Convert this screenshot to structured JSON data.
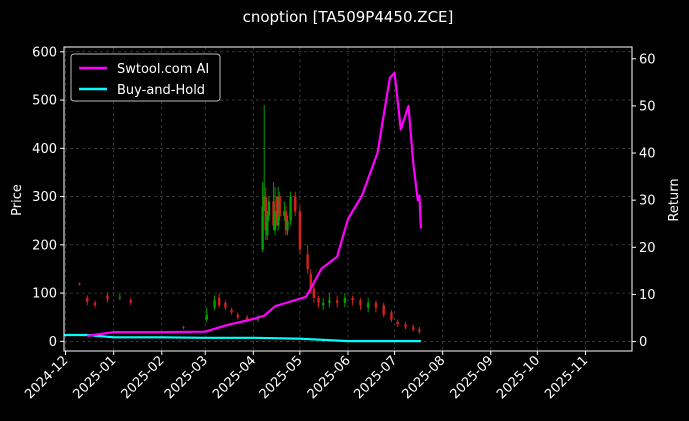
{
  "chart_data": {
    "type": "line",
    "title": "cnoption [TA509P4450.ZCE]",
    "ylabel": "Price",
    "ylabel_right": "Return",
    "grid": true,
    "legend_position": "top-left",
    "ylim": [
      -20,
      610
    ],
    "ylim_right": [
      -2,
      62.5
    ],
    "xlim": [
      "2024-11-30",
      "2025-12-01"
    ],
    "x_ticks": [
      "2024-12",
      "2025-01",
      "2025-02",
      "2025-03",
      "2025-04",
      "2025-05",
      "2025-06",
      "2025-07",
      "2025-08",
      "2025-09",
      "2025-10",
      "2025-11"
    ],
    "y_ticks": [
      0,
      100,
      200,
      300,
      400,
      500,
      600
    ],
    "y_ticks_right": [
      0,
      10,
      20,
      30,
      40,
      50,
      60
    ],
    "colors": {
      "background": "#000000",
      "grid": "#555555",
      "up_candle": "#00a000",
      "down_candle": "#d62020",
      "strategy": "#ff00ff",
      "benchmark": "#00ffff"
    },
    "series": [
      {
        "name": "Swtool.com AI",
        "axis": "right",
        "x": [
          "2024-12-15",
          "2025-01-01",
          "2025-02-01",
          "2025-03-01",
          "2025-03-15",
          "2025-04-01",
          "2025-04-08",
          "2025-04-15",
          "2025-04-25",
          "2025-05-05",
          "2025-05-15",
          "2025-05-25",
          "2025-06-01",
          "2025-06-10",
          "2025-06-20",
          "2025-06-28",
          "2025-07-01",
          "2025-07-05",
          "2025-07-10",
          "2025-07-13",
          "2025-07-16",
          "2025-07-17",
          "2025-07-18"
        ],
        "values": [
          1.2,
          2.0,
          2.0,
          2.1,
          3.5,
          4.8,
          5.5,
          7.5,
          8.5,
          9.5,
          15.5,
          18,
          26,
          31,
          40,
          56,
          57,
          45,
          50,
          38,
          30,
          31,
          24
        ]
      },
      {
        "name": "Buy-and-Hold",
        "axis": "right",
        "x": [
          "2024-11-30",
          "2024-12-15",
          "2025-01-01",
          "2025-02-01",
          "2025-03-01",
          "2025-03-15",
          "2025-04-01",
          "2025-05-01",
          "2025-06-01",
          "2025-07-01",
          "2025-07-18"
        ],
        "values": [
          1.4,
          1.4,
          0.9,
          0.9,
          0.8,
          0.8,
          0.8,
          0.6,
          0.1,
          0.1,
          0.1
        ]
      }
    ],
    "candles": {
      "x": [
        "2024-12-10",
        "2024-12-15",
        "2024-12-20",
        "2024-12-28",
        "2025-01-05",
        "2025-01-12",
        "2025-02-15",
        "2025-03-02",
        "2025-03-07",
        "2025-03-10",
        "2025-03-14",
        "2025-03-18",
        "2025-03-22",
        "2025-03-28",
        "2025-04-04",
        "2025-04-07",
        "2025-04-08",
        "2025-04-09",
        "2025-04-10",
        "2025-04-11",
        "2025-04-14",
        "2025-04-15",
        "2025-04-16",
        "2025-04-17",
        "2025-04-18",
        "2025-04-21",
        "2025-04-22",
        "2025-04-23",
        "2025-04-25",
        "2025-04-28",
        "2025-05-01",
        "2025-05-06",
        "2025-05-08",
        "2025-05-10",
        "2025-05-13",
        "2025-05-16",
        "2025-05-20",
        "2025-05-25",
        "2025-05-30",
        "2025-06-04",
        "2025-06-09",
        "2025-06-14",
        "2025-06-19",
        "2025-06-24",
        "2025-06-29",
        "2025-07-03",
        "2025-07-08",
        "2025-07-13",
        "2025-07-17"
      ],
      "open": [
        120,
        90,
        80,
        95,
        90,
        85,
        30,
        45,
        70,
        90,
        80,
        65,
        55,
        50,
        45,
        190,
        280,
        300,
        220,
        260,
        290,
        230,
        270,
        240,
        300,
        260,
        270,
        230,
        250,
        300,
        270,
        180,
        140,
        110,
        90,
        75,
        80,
        85,
        80,
        90,
        85,
        70,
        80,
        75,
        60,
        40,
        35,
        30,
        25
      ],
      "close": [
        118,
        82,
        75,
        88,
        92,
        80,
        28,
        55,
        85,
        75,
        70,
        60,
        50,
        45,
        50,
        280,
        300,
        230,
        260,
        290,
        240,
        270,
        250,
        300,
        260,
        270,
        230,
        250,
        300,
        270,
        190,
        150,
        110,
        90,
        80,
        80,
        85,
        80,
        90,
        85,
        75,
        80,
        70,
        55,
        45,
        35,
        30,
        25,
        20
      ],
      "high": [
        122,
        95,
        85,
        100,
        98,
        90,
        32,
        70,
        95,
        100,
        85,
        70,
        60,
        55,
        55,
        330,
        490,
        320,
        270,
        300,
        330,
        320,
        300,
        320,
        310,
        290,
        280,
        260,
        310,
        310,
        280,
        200,
        150,
        120,
        95,
        90,
        100,
        95,
        100,
        95,
        90,
        90,
        85,
        80,
        65,
        45,
        40,
        35,
        30
      ],
      "low": [
        116,
        75,
        70,
        80,
        85,
        75,
        25,
        40,
        65,
        70,
        65,
        55,
        45,
        40,
        40,
        185,
        270,
        210,
        210,
        250,
        230,
        220,
        240,
        230,
        250,
        250,
        220,
        220,
        240,
        260,
        180,
        140,
        100,
        80,
        70,
        65,
        70,
        70,
        70,
        75,
        65,
        60,
        60,
        50,
        40,
        30,
        25,
        20,
        15
      ]
    }
  }
}
